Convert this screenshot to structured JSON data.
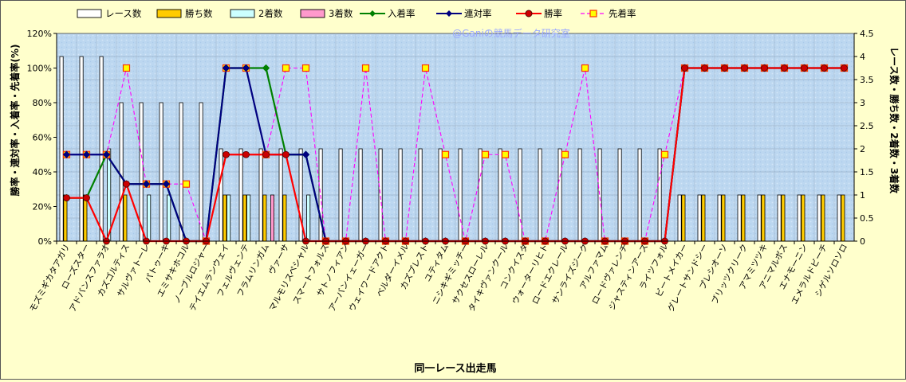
{
  "chart_data": {
    "type": "bar+line",
    "title": "",
    "watermark": "@Ganiの競馬データ研究室",
    "xlabel": "同一レース出走馬",
    "ylabel_left": "勝率・連対率・入着率・先着率(%)",
    "ylabel_right": "レース数・勝ち数・2着数・3着数",
    "ylim_left": [
      0,
      120
    ],
    "ylim_right": [
      0,
      4.5
    ],
    "yticks_left": [
      "0%",
      "20%",
      "40%",
      "60%",
      "80%",
      "100%",
      "120%"
    ],
    "yticks_right": [
      "0",
      "0.5",
      "1",
      "1.5",
      "2",
      "2.5",
      "3",
      "3.5",
      "4",
      "4.5"
    ],
    "grid": true,
    "legend_position": "top",
    "categories": [
      "モズミギカタアガリ",
      "ローズスター",
      "アドバンスファラオ",
      "カズゴルティス",
      "サルヴァトーレ",
      "パトゥーキ",
      "エミサキホコル",
      "ノーブルロジャー",
      "テイエムランウェイ",
      "フェルヴェンテ",
      "フラムリンガム",
      "ヴァーサ",
      "マルモリスペシャル",
      "スマートフォルス",
      "サトノフィアン",
      "アーバンイェーガー",
      "ウェイワードアクト",
      "ベルダーイメル",
      "カズプレスト",
      "ユティタム",
      "ニシキギミッチー",
      "サクセスローレル",
      "タイキヴァンクール",
      "コンクイスタ",
      "ウォーターリヒト",
      "ロードエクレール",
      "サンライズジーク",
      "アルファマム",
      "ロードヴァレンチ",
      "ジャスティンアース",
      "ライツフォル",
      "ビートメイカー",
      "グレートサンドシー",
      "プレシオーソ",
      "ブリッツクリーク",
      "アマミツツキ",
      "アニマルボス",
      "エナモーニン",
      "エメラルドビーチ",
      "シゲルソロソロ"
    ],
    "series": [
      {
        "name": "レース数",
        "axis": "right",
        "kind": "bar",
        "color": "#ffffff",
        "values": [
          4,
          4,
          4,
          3,
          3,
          3,
          3,
          3,
          2,
          2,
          2,
          2,
          2,
          2,
          2,
          2,
          2,
          2,
          2,
          2,
          2,
          2,
          2,
          2,
          2,
          2,
          2,
          2,
          2,
          2,
          2,
          1,
          1,
          1,
          1,
          1,
          1,
          1,
          1,
          1
        ]
      },
      {
        "name": "勝ち数",
        "axis": "right",
        "kind": "bar",
        "color": "#ffcc00",
        "values": [
          1,
          1,
          0,
          1,
          0,
          0,
          0,
          0,
          1,
          1,
          1,
          1,
          0,
          0,
          0,
          0,
          0,
          0,
          0,
          0,
          0,
          0,
          0,
          0,
          0,
          0,
          0,
          0,
          0,
          0,
          0,
          1,
          1,
          1,
          1,
          1,
          1,
          1,
          1,
          1
        ]
      },
      {
        "name": "2着数",
        "axis": "right",
        "kind": "bar",
        "color": "#ccffff",
        "values": [
          0,
          0,
          2,
          0,
          1,
          1,
          0,
          0,
          1,
          1,
          0,
          0,
          1,
          0,
          0,
          0,
          0,
          0,
          0,
          0,
          0,
          0,
          0,
          0,
          0,
          0,
          0,
          0,
          0,
          0,
          0,
          0,
          0,
          0,
          0,
          0,
          0,
          0,
          0,
          0
        ]
      },
      {
        "name": "3着数",
        "axis": "right",
        "kind": "bar",
        "color": "#ff99cc",
        "values": [
          0,
          0,
          0,
          0,
          0,
          0,
          0,
          0,
          0,
          0,
          1,
          0,
          0,
          0,
          0,
          0,
          0,
          0,
          0,
          0,
          0,
          0,
          0,
          0,
          0,
          0,
          0,
          0,
          0,
          0,
          0,
          0,
          0,
          0,
          0,
          0,
          0,
          0,
          0,
          0
        ]
      },
      {
        "name": "入着率",
        "axis": "left",
        "kind": "line",
        "color": "#008000",
        "marker": "diamond",
        "values": [
          25,
          25,
          50,
          33,
          33,
          33,
          0,
          0,
          100,
          100,
          100,
          50,
          50,
          0,
          0,
          0,
          0,
          0,
          0,
          0,
          0,
          0,
          0,
          0,
          0,
          0,
          0,
          0,
          0,
          0,
          0,
          100,
          100,
          100,
          100,
          100,
          100,
          100,
          100,
          100
        ]
      },
      {
        "name": "連対率",
        "axis": "left",
        "kind": "line",
        "color": "#000080",
        "marker": "diamond",
        "values": [
          50,
          50,
          50,
          33,
          33,
          33,
          0,
          0,
          100,
          100,
          50,
          50,
          50,
          0,
          0,
          0,
          0,
          0,
          0,
          0,
          0,
          0,
          0,
          0,
          0,
          0,
          0,
          0,
          0,
          0,
          0,
          100,
          100,
          100,
          100,
          100,
          100,
          100,
          100,
          100
        ]
      },
      {
        "name": "勝率",
        "axis": "left",
        "kind": "line",
        "color": "#ff0000",
        "marker": "circle",
        "values": [
          25,
          25,
          0,
          33,
          0,
          0,
          0,
          0,
          50,
          50,
          50,
          50,
          0,
          0,
          0,
          0,
          0,
          0,
          0,
          0,
          0,
          0,
          0,
          0,
          0,
          0,
          0,
          0,
          0,
          0,
          0,
          100,
          100,
          100,
          100,
          100,
          100,
          100,
          100,
          100
        ]
      },
      {
        "name": "先着率",
        "axis": "left",
        "kind": "line",
        "color": "#ff00ff",
        "marker": "square",
        "dashed": true,
        "values": [
          50,
          50,
          50,
          100,
          33,
          33,
          33,
          0,
          100,
          100,
          50,
          100,
          100,
          0,
          0,
          100,
          0,
          0,
          100,
          50,
          0,
          50,
          50,
          0,
          0,
          50,
          100,
          0,
          0,
          0,
          50,
          100,
          100,
          100,
          100,
          100,
          100,
          100,
          100,
          100
        ]
      }
    ]
  }
}
